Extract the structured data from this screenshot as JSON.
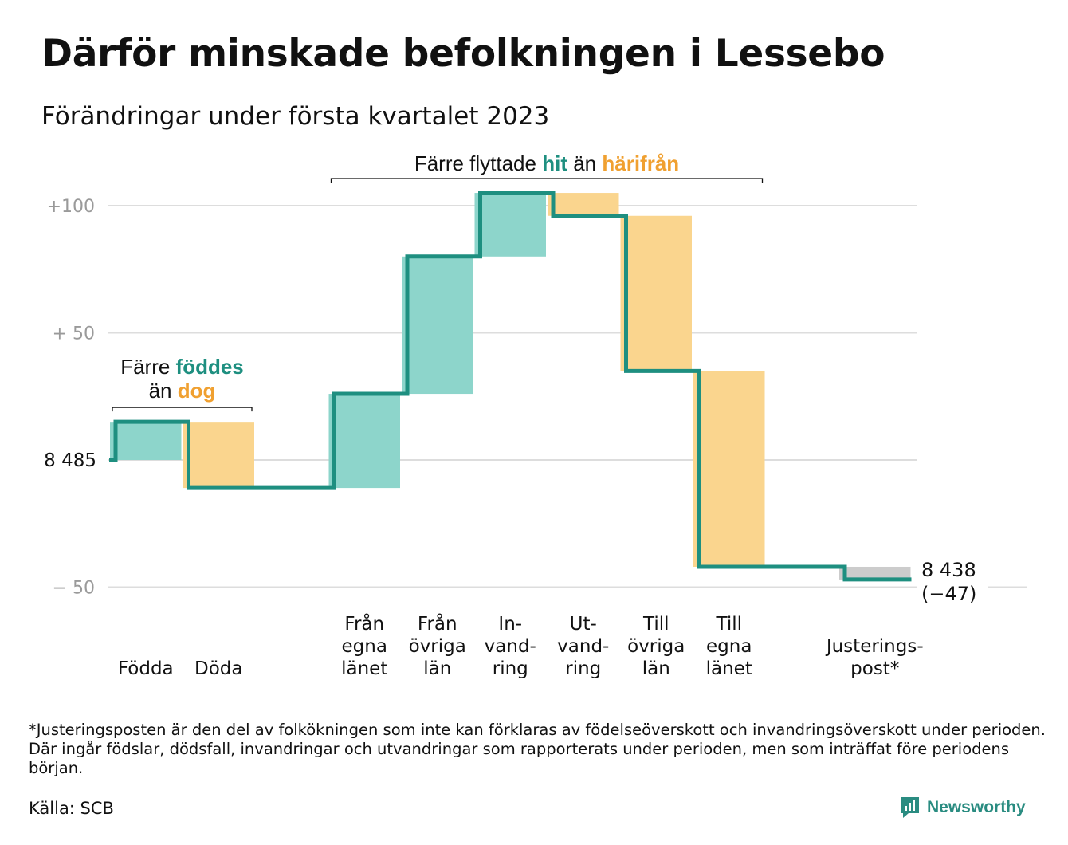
{
  "title": "Därför minskade befolkningen i Lessebo",
  "subtitle": "Förändringar under första kvartalet 2023",
  "footnote": "*Justeringsposten är den del av folkökningen som inte kan förklaras av födelseöverskott och invandringsöverskott under perioden. Där ingår födslar, dödsfall, invandringar och utvandringar som rapporterats under perioden, men som inträffat före periodens början.",
  "source": "Källa: SCB",
  "brand": "Newsworthy",
  "colors": {
    "line": "#1e8f80",
    "increase": "#8dd5cb",
    "decrease": "#fad58e",
    "adjustment": "#cccccc",
    "grid": "#dddddd",
    "tick_text": "#9a9a9a",
    "teal_text": "#1e8f80",
    "orange_text": "#f0a030"
  },
  "chart_data": {
    "type": "waterfall",
    "start_value": 8485,
    "start_label": "8 485",
    "end_value": 8438,
    "end_label": "8 438",
    "end_change_label": "(−47)",
    "y_ticks": [
      {
        "value": 100,
        "label": "+100"
      },
      {
        "value": 50,
        "label": "+ 50"
      },
      {
        "value": 0,
        "label": ""
      },
      {
        "value": -50,
        "label": "− 50"
      }
    ],
    "grid": true,
    "steps": [
      {
        "label": [
          "Födda"
        ],
        "change": 15,
        "kind": "increase"
      },
      {
        "label": [
          "Döda"
        ],
        "change": -26,
        "kind": "decrease"
      },
      {
        "label": [],
        "change": 0,
        "kind": "none"
      },
      {
        "label": [
          "Från",
          "egna",
          "länet"
        ],
        "change": 37,
        "kind": "increase"
      },
      {
        "label": [
          "Från",
          "övriga",
          "län"
        ],
        "change": 54,
        "kind": "increase"
      },
      {
        "label": [
          "In-",
          "vand-",
          "ring"
        ],
        "change": 25,
        "kind": "increase"
      },
      {
        "label": [
          "Ut-",
          "vand-",
          "ring"
        ],
        "change": -9,
        "kind": "decrease"
      },
      {
        "label": [
          "Till",
          "övriga",
          "län"
        ],
        "change": -61,
        "kind": "decrease"
      },
      {
        "label": [
          "Till",
          "egna",
          "länet"
        ],
        "change": -77,
        "kind": "decrease"
      },
      {
        "label": [],
        "change": 0,
        "kind": "none"
      },
      {
        "label": [
          "Justerings-",
          "post*"
        ],
        "change": -5,
        "kind": "adjustment"
      }
    ],
    "annotations": [
      {
        "parts": [
          {
            "text": "Färre ",
            "tone": "plain"
          },
          {
            "text": "föddes",
            "tone": "teal"
          }
        ],
        "parts2": [
          {
            "text": "än ",
            "tone": "plain"
          },
          {
            "text": "dog",
            "tone": "orange"
          }
        ],
        "from_step": 0,
        "to_step": 1
      },
      {
        "parts": [
          {
            "text": "Färre flyttade ",
            "tone": "plain"
          },
          {
            "text": "hit",
            "tone": "teal"
          },
          {
            "text": " än ",
            "tone": "plain"
          },
          {
            "text": "härifrån",
            "tone": "orange"
          }
        ],
        "parts2": [],
        "from_step": 3,
        "to_step": 8
      }
    ]
  }
}
